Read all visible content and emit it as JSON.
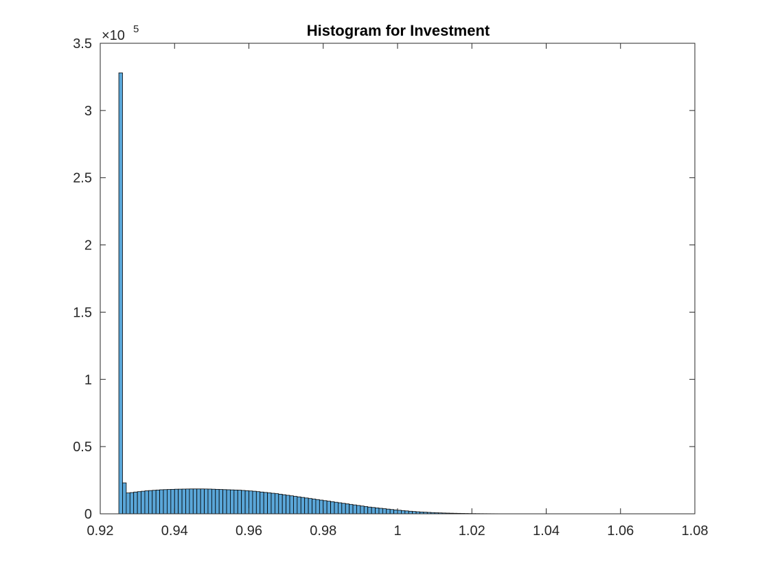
{
  "chart_data": {
    "type": "bar",
    "title": "Histogram for Investment",
    "xlabel": "",
    "ylabel": "",
    "x_ticks": [
      "0.92",
      "0.94",
      "0.96",
      "0.98",
      "1",
      "1.02",
      "1.04",
      "1.06",
      "1.08"
    ],
    "y_ticks": [
      "0",
      "0.5",
      "1",
      "1.5",
      "2",
      "2.5",
      "3",
      "3.5"
    ],
    "y_exponent_base": "×10",
    "y_exponent_power": "5",
    "xlim": [
      0.92,
      1.08
    ],
    "ylim": [
      0,
      350000
    ],
    "grid": false,
    "bar_color": "#5aa6d8",
    "edge_color": "#000000",
    "bin_edges_start": 0.925,
    "bin_width": 0.001,
    "series": [
      {
        "values": [
          328000,
          23000,
          15500,
          15800,
          16200,
          16500,
          16800,
          17100,
          17300,
          17500,
          17700,
          17900,
          18000,
          18100,
          18200,
          18300,
          18350,
          18400,
          18450,
          18500,
          18500,
          18500,
          18500,
          18450,
          18400,
          18300,
          18200,
          18100,
          18000,
          17900,
          17800,
          17700,
          17600,
          17400,
          17200,
          17000,
          16800,
          16500,
          16200,
          15900,
          15600,
          15300,
          15000,
          14600,
          14200,
          13800,
          13400,
          13000,
          12600,
          12200,
          11800,
          11400,
          11000,
          10600,
          10200,
          9800,
          9400,
          9000,
          8600,
          8200,
          7800,
          7400,
          7000,
          6600,
          6200,
          5800,
          5400,
          5000,
          4700,
          4400,
          4100,
          3800,
          3500,
          3200,
          2900,
          2650,
          2400,
          2150,
          1900,
          1700,
          1500,
          1350,
          1200,
          1050,
          900,
          780,
          680,
          590,
          510,
          440,
          380,
          330,
          280,
          240,
          200,
          170,
          140,
          120,
          100,
          85,
          70,
          60,
          50,
          42,
          35,
          30,
          25,
          20,
          17,
          14,
          12,
          10,
          8,
          6,
          5,
          4,
          3,
          3,
          2,
          2,
          2,
          1,
          1,
          1,
          1,
          1,
          1,
          1,
          1,
          1,
          1,
          1,
          1,
          1,
          1,
          1,
          1,
          1,
          1,
          1,
          1,
          1,
          1,
          1,
          1,
          1,
          1,
          1
        ]
      }
    ]
  }
}
